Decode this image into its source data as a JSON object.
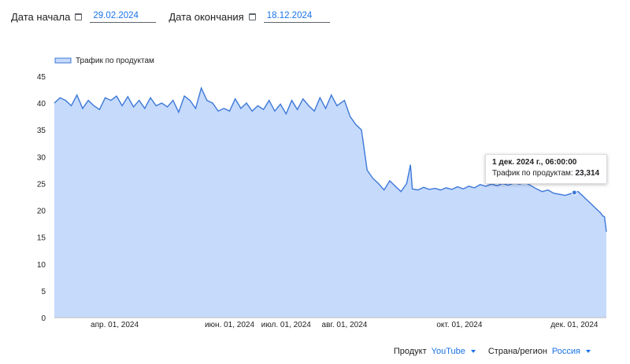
{
  "filters_top": {
    "start_label": "Дата начала",
    "start_value": "29.02.2024",
    "end_label": "Дата окончания",
    "end_value": "18.12.2024"
  },
  "icons": {
    "calendar": "calendar-icon",
    "dropdown": "chevron-down-icon"
  },
  "colors": {
    "accent": "#1a73e8",
    "line": "#3c78d8",
    "area": "#c6dafc"
  },
  "tooltip": {
    "title": "1 дек. 2024 г., 06:00:00",
    "label": "Трафик по продуктам:",
    "value": "23,314"
  },
  "filters_bottom": {
    "product_label": "Продукт",
    "product_value": "YouTube",
    "country_label": "Страна/регион",
    "country_value": "Россия"
  },
  "chart_data": {
    "type": "area",
    "legend": "Трафик по продуктам",
    "legend_position": "top-left",
    "grid": false,
    "ylim": [
      0,
      45
    ],
    "yticks": [
      "0",
      "5",
      "10",
      "15",
      "20",
      "25",
      "30",
      "35",
      "40",
      "45"
    ],
    "xticks": [
      {
        "label": "апр. 01, 2024",
        "date": "2024-04-01"
      },
      {
        "label": "июн. 01, 2024",
        "date": "2024-06-01"
      },
      {
        "label": "июл. 01, 2024",
        "date": "2024-07-01"
      },
      {
        "label": "авг. 01, 2024",
        "date": "2024-08-01"
      },
      {
        "label": "окт. 01, 2024",
        "date": "2024-10-01"
      },
      {
        "label": "дек. 01, 2024",
        "date": "2024-12-01"
      }
    ],
    "series": [
      {
        "name": "Трафик по продуктам",
        "points": [
          [
            "2024-02-29",
            40.0
          ],
          [
            "2024-03-03",
            41.0
          ],
          [
            "2024-03-06",
            40.5
          ],
          [
            "2024-03-09",
            39.5
          ],
          [
            "2024-03-12",
            41.5
          ],
          [
            "2024-03-15",
            39.0
          ],
          [
            "2024-03-18",
            40.5
          ],
          [
            "2024-03-21",
            39.5
          ],
          [
            "2024-03-24",
            38.8
          ],
          [
            "2024-03-27",
            41.0
          ],
          [
            "2024-03-30",
            40.5
          ],
          [
            "2024-04-02",
            41.3
          ],
          [
            "2024-04-05",
            39.5
          ],
          [
            "2024-04-08",
            41.2
          ],
          [
            "2024-04-11",
            39.3
          ],
          [
            "2024-04-14",
            40.5
          ],
          [
            "2024-04-17",
            39.0
          ],
          [
            "2024-04-20",
            41.0
          ],
          [
            "2024-04-23",
            39.5
          ],
          [
            "2024-04-26",
            40.0
          ],
          [
            "2024-04-29",
            39.3
          ],
          [
            "2024-05-02",
            40.5
          ],
          [
            "2024-05-05",
            38.3
          ],
          [
            "2024-05-08",
            41.3
          ],
          [
            "2024-05-11",
            40.5
          ],
          [
            "2024-05-14",
            39.0
          ],
          [
            "2024-05-17",
            42.8
          ],
          [
            "2024-05-20",
            40.5
          ],
          [
            "2024-05-23",
            40.0
          ],
          [
            "2024-05-26",
            38.5
          ],
          [
            "2024-05-29",
            39.0
          ],
          [
            "2024-06-01",
            38.5
          ],
          [
            "2024-06-04",
            40.8
          ],
          [
            "2024-06-07",
            39.0
          ],
          [
            "2024-06-10",
            40.0
          ],
          [
            "2024-06-13",
            38.5
          ],
          [
            "2024-06-16",
            39.5
          ],
          [
            "2024-06-19",
            38.8
          ],
          [
            "2024-06-22",
            40.5
          ],
          [
            "2024-06-25",
            38.5
          ],
          [
            "2024-06-28",
            39.8
          ],
          [
            "2024-07-01",
            38.0
          ],
          [
            "2024-07-04",
            40.5
          ],
          [
            "2024-07-07",
            38.8
          ],
          [
            "2024-07-10",
            40.8
          ],
          [
            "2024-07-13",
            39.5
          ],
          [
            "2024-07-16",
            38.5
          ],
          [
            "2024-07-19",
            41.0
          ],
          [
            "2024-07-22",
            39.0
          ],
          [
            "2024-07-25",
            41.5
          ],
          [
            "2024-07-28",
            39.5
          ],
          [
            "2024-08-01",
            40.5
          ],
          [
            "2024-08-04",
            37.5
          ],
          [
            "2024-08-07",
            36.0
          ],
          [
            "2024-08-10",
            35.0
          ],
          [
            "2024-08-13",
            27.5
          ],
          [
            "2024-08-16",
            26.0
          ],
          [
            "2024-08-19",
            25.0
          ],
          [
            "2024-08-22",
            23.8
          ],
          [
            "2024-08-25",
            25.5
          ],
          [
            "2024-08-28",
            24.5
          ],
          [
            "2024-08-31",
            23.5
          ],
          [
            "2024-09-03",
            25.0
          ],
          [
            "2024-09-05",
            28.5
          ],
          [
            "2024-09-06",
            24.0
          ],
          [
            "2024-09-09",
            23.8
          ],
          [
            "2024-09-12",
            24.3
          ],
          [
            "2024-09-15",
            23.9
          ],
          [
            "2024-09-18",
            24.1
          ],
          [
            "2024-09-21",
            23.8
          ],
          [
            "2024-09-24",
            24.2
          ],
          [
            "2024-09-27",
            23.9
          ],
          [
            "2024-09-30",
            24.4
          ],
          [
            "2024-10-03",
            24.0
          ],
          [
            "2024-10-06",
            24.5
          ],
          [
            "2024-10-09",
            24.2
          ],
          [
            "2024-10-12",
            24.8
          ],
          [
            "2024-10-15",
            24.5
          ],
          [
            "2024-10-18",
            24.9
          ],
          [
            "2024-10-21",
            24.6
          ],
          [
            "2024-10-24",
            25.0
          ],
          [
            "2024-10-27",
            24.7
          ],
          [
            "2024-10-30",
            25.1
          ],
          [
            "2024-11-02",
            24.9
          ],
          [
            "2024-11-05",
            25.2
          ],
          [
            "2024-11-08",
            24.6
          ],
          [
            "2024-11-11",
            24.0
          ],
          [
            "2024-11-14",
            23.5
          ],
          [
            "2024-11-17",
            23.8
          ],
          [
            "2024-11-20",
            23.2
          ],
          [
            "2024-11-23",
            23.0
          ],
          [
            "2024-11-26",
            22.8
          ],
          [
            "2024-11-29",
            23.1
          ],
          [
            "2024-12-01",
            23.314
          ],
          [
            "2024-12-03",
            23.5
          ],
          [
            "2024-12-06",
            22.5
          ],
          [
            "2024-12-09",
            21.5
          ],
          [
            "2024-12-12",
            20.5
          ],
          [
            "2024-12-15",
            19.5
          ],
          [
            "2024-12-16",
            19.0
          ],
          [
            "2024-12-17",
            18.8
          ],
          [
            "2024-12-18",
            16.0
          ]
        ]
      }
    ],
    "highlight": {
      "date": "2024-12-01",
      "value": 23.314
    }
  }
}
